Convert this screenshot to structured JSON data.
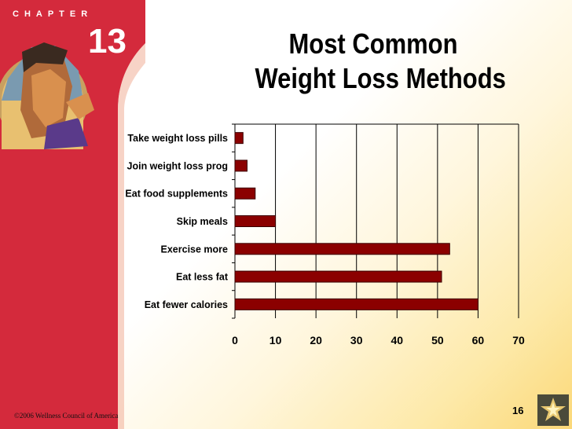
{
  "slide": {
    "chapter_label": "CHAPTER",
    "chapter_number": "13",
    "title_line1": "Most Common",
    "title_line2": "Weight Loss Methods",
    "footer": "©2006 Wellness Council of America",
    "page_number": "16"
  },
  "colors": {
    "banner_red": "#d42a3c",
    "bar_fill": "#8b0000",
    "bar_stroke": "#3a0000"
  },
  "chart_data": {
    "type": "bar",
    "orientation": "horizontal",
    "categories": [
      "Take weight loss pills",
      "Join weight loss prog",
      "Eat food supplements",
      "Skip meals",
      "Exercise more",
      "Eat less fat",
      "Eat fewer calories"
    ],
    "values": [
      2,
      3,
      5,
      10,
      53,
      51,
      60
    ],
    "x_ticks": [
      "0",
      "10",
      "20",
      "30",
      "40",
      "50",
      "60",
      "70"
    ],
    "xlim": [
      0,
      70
    ],
    "grid": "vertical",
    "legend": "none"
  }
}
